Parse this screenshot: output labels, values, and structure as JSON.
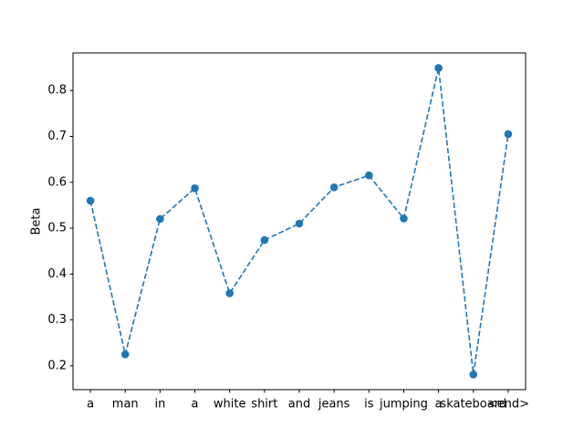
{
  "chart_data": {
    "type": "line",
    "title": "",
    "xlabel": "",
    "ylabel": "Beta",
    "categories": [
      "a",
      "man",
      "in",
      "a",
      "white",
      "shirt",
      "and",
      "jeans",
      "is",
      "jumping",
      "a",
      "skateboard",
      "<end>"
    ],
    "series": [
      {
        "values": [
          0.56,
          0.225,
          0.52,
          0.587,
          0.358,
          0.474,
          0.51,
          0.589,
          0.615,
          0.521,
          0.849,
          0.181,
          0.705
        ],
        "color": "#1f77b4",
        "line_style": "dashed",
        "marker": "circle"
      }
    ],
    "ylim": [
      0.148,
      0.882
    ],
    "yticks": [
      0.2,
      0.3,
      0.4,
      0.5,
      0.6,
      0.7,
      0.8
    ],
    "ytick_labels": [
      "0.2",
      "0.3",
      "0.4",
      "0.5",
      "0.6",
      "0.7",
      "0.8"
    ],
    "grid": false,
    "legend": "none"
  }
}
